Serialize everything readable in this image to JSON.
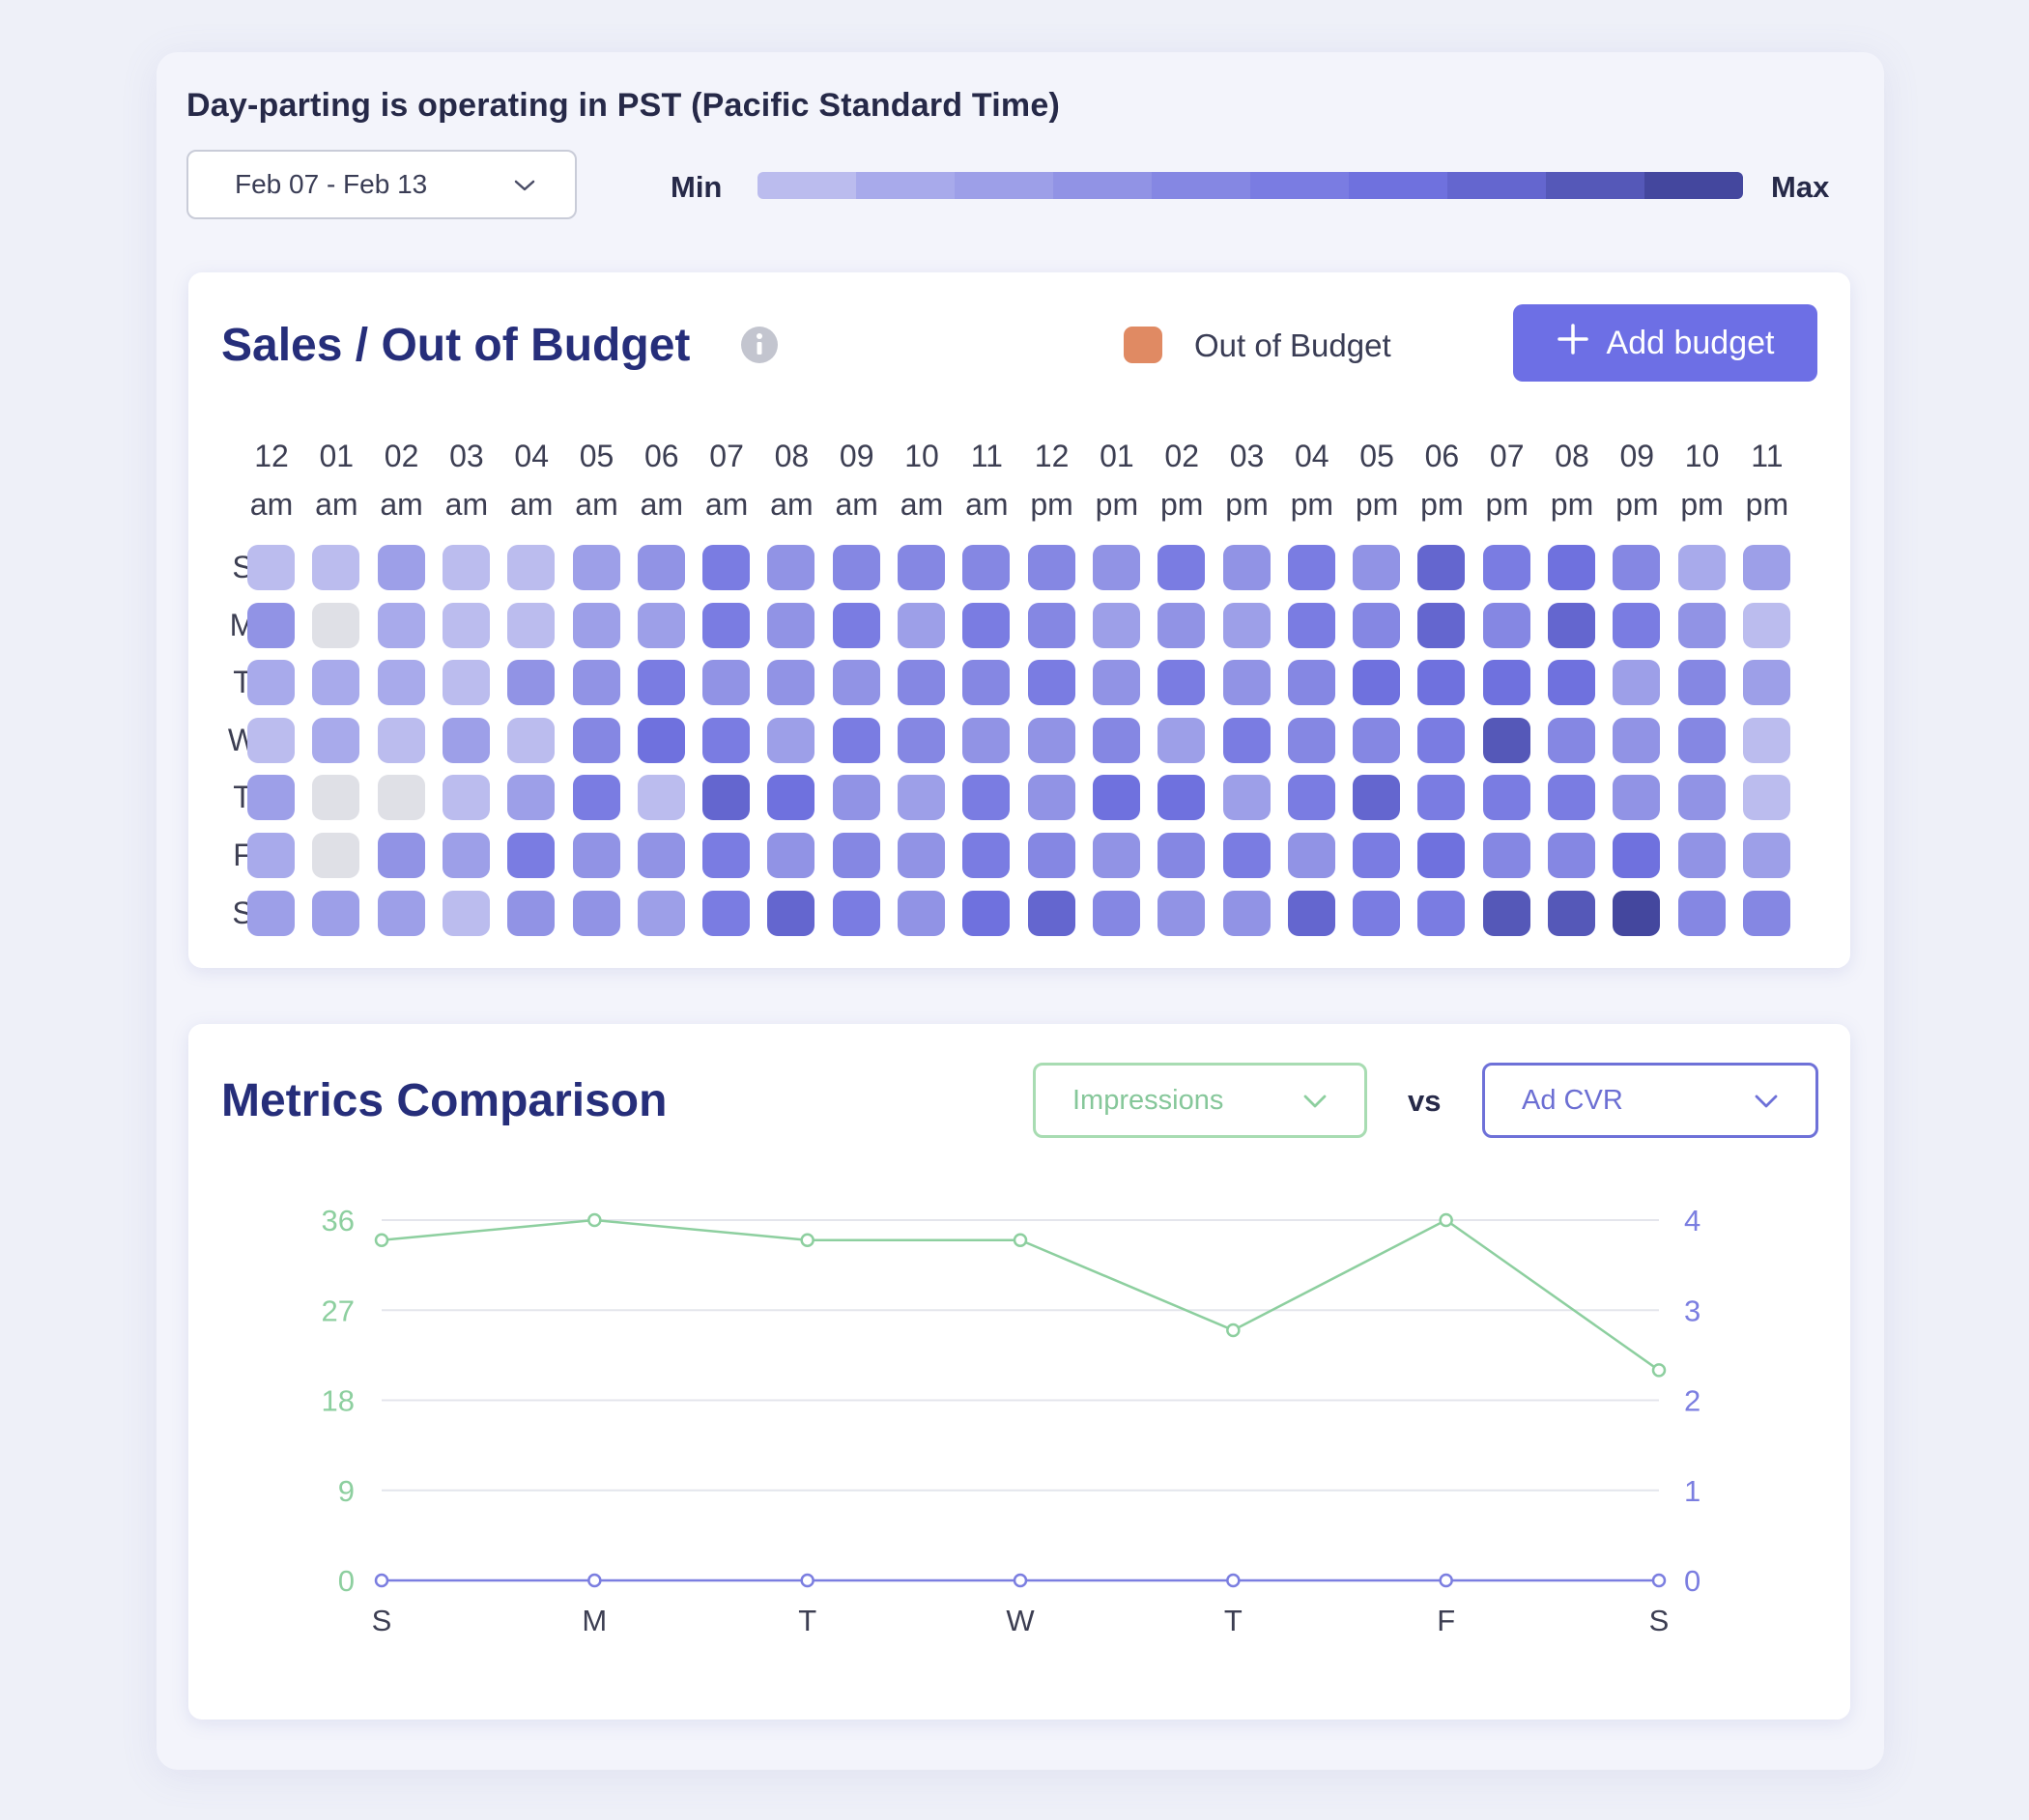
{
  "header": {
    "timezone_text": "Day-parting is operating in PST (Pacific Standard Time)",
    "date_range": "Feb 07 - Feb 13",
    "scale_min": "Min",
    "scale_max": "Max",
    "scale_colors": [
      "#bbbcee",
      "#a8aaeb",
      "#9d9fe8",
      "#9193e5",
      "#8587e3",
      "#7a7ce2",
      "#6f71de",
      "#6466cf",
      "#5558b8",
      "#44479e"
    ]
  },
  "sales": {
    "title": "Sales / Out of Budget",
    "legend_label": "Out of Budget",
    "legend_color": "#e08a63",
    "add_button_label": "Add budget",
    "hours": [
      {
        "h": "12",
        "p": "am"
      },
      {
        "h": "01",
        "p": "am"
      },
      {
        "h": "02",
        "p": "am"
      },
      {
        "h": "03",
        "p": "am"
      },
      {
        "h": "04",
        "p": "am"
      },
      {
        "h": "05",
        "p": "am"
      },
      {
        "h": "06",
        "p": "am"
      },
      {
        "h": "07",
        "p": "am"
      },
      {
        "h": "08",
        "p": "am"
      },
      {
        "h": "09",
        "p": "am"
      },
      {
        "h": "10",
        "p": "am"
      },
      {
        "h": "11",
        "p": "am"
      },
      {
        "h": "12",
        "p": "pm"
      },
      {
        "h": "01",
        "p": "pm"
      },
      {
        "h": "02",
        "p": "pm"
      },
      {
        "h": "03",
        "p": "pm"
      },
      {
        "h": "04",
        "p": "pm"
      },
      {
        "h": "05",
        "p": "pm"
      },
      {
        "h": "06",
        "p": "pm"
      },
      {
        "h": "07",
        "p": "pm"
      },
      {
        "h": "08",
        "p": "pm"
      },
      {
        "h": "09",
        "p": "pm"
      },
      {
        "h": "10",
        "p": "pm"
      },
      {
        "h": "11",
        "p": "pm"
      }
    ],
    "days": [
      "S",
      "M",
      "T",
      "W",
      "T",
      "F",
      "S"
    ],
    "empty_color": "#dfe0e6",
    "levels": [
      [
        1,
        1,
        3,
        1,
        1,
        3,
        4,
        6,
        4,
        5,
        5,
        5,
        5,
        4,
        6,
        4,
        6,
        4,
        8,
        6,
        7,
        5,
        2,
        3
      ],
      [
        4,
        0,
        2,
        1,
        1,
        3,
        3,
        6,
        4,
        6,
        3,
        6,
        5,
        3,
        4,
        3,
        6,
        5,
        8,
        5,
        8,
        6,
        4,
        1
      ],
      [
        2,
        2,
        2,
        1,
        4,
        4,
        6,
        4,
        4,
        4,
        5,
        5,
        6,
        4,
        6,
        4,
        5,
        7,
        7,
        7,
        7,
        3,
        5,
        3
      ],
      [
        1,
        2,
        1,
        3,
        1,
        5,
        7,
        6,
        3,
        6,
        5,
        4,
        4,
        5,
        3,
        6,
        5,
        5,
        6,
        9,
        5,
        4,
        5,
        1
      ],
      [
        3,
        0,
        0,
        1,
        3,
        6,
        1,
        8,
        7,
        4,
        3,
        6,
        4,
        7,
        7,
        3,
        6,
        8,
        6,
        6,
        6,
        4,
        4,
        1
      ],
      [
        2,
        0,
        4,
        3,
        6,
        4,
        4,
        6,
        4,
        5,
        4,
        6,
        5,
        4,
        5,
        6,
        4,
        6,
        7,
        5,
        5,
        7,
        4,
        3
      ],
      [
        3,
        3,
        3,
        1,
        4,
        4,
        3,
        6,
        8,
        6,
        4,
        7,
        8,
        5,
        4,
        4,
        8,
        6,
        6,
        9,
        9,
        10,
        5,
        5
      ]
    ]
  },
  "metrics": {
    "title": "Metrics Comparison",
    "left_metric": "Impressions",
    "right_metric": "Ad CVR",
    "vs_label": "vs"
  },
  "chart_data": {
    "type": "line",
    "categories": [
      "S",
      "M",
      "T",
      "W",
      "T",
      "F",
      "S"
    ],
    "series": [
      {
        "name": "Impressions",
        "axis": "left",
        "color": "#8dcf9f",
        "values": [
          34,
          36,
          34,
          34,
          25,
          36,
          21
        ]
      },
      {
        "name": "Ad CVR",
        "axis": "right",
        "color": "#7b7ee0",
        "values": [
          0,
          0,
          0,
          0,
          0,
          0,
          0
        ]
      }
    ],
    "y_left": {
      "ticks": [
        "0",
        "9",
        "18",
        "27",
        "36"
      ],
      "ylim": [
        0,
        36
      ]
    },
    "y_right": {
      "ticks": [
        "0",
        "1",
        "2",
        "3",
        "4"
      ],
      "ylim": [
        0,
        4
      ]
    },
    "grid": true
  }
}
